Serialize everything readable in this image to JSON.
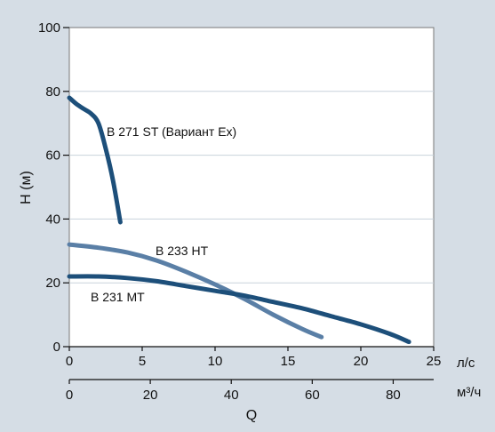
{
  "chart_data": {
    "type": "line",
    "ylabel": "H (м)",
    "xlabel": "Q",
    "x_primary_unit": "л/с",
    "x_secondary_unit": "м³/ч",
    "xlim": [
      0,
      25
    ],
    "ylim": [
      0,
      100
    ],
    "x_ticks": [
      0,
      5,
      10,
      15,
      20,
      25
    ],
    "y_ticks": [
      0,
      20,
      40,
      60,
      80,
      100
    ],
    "x_secondary_ticks": [
      0,
      20,
      40,
      60,
      80
    ],
    "x_secondary_per_primary": 3.6,
    "grid": "horizontal",
    "colors": {
      "background": "#d5dde5",
      "plot_bg": "#ffffff",
      "dark_series": "#1d4f7a",
      "light_series": "#5a7fa6",
      "grid": "#c8d2dc"
    },
    "series": [
      {
        "name": "B 271 ST (Вариант Ex)",
        "color": "#1d4f7a",
        "x": [
          0,
          0.5,
          1.0,
          1.5,
          2.0,
          2.5,
          3.0,
          3.5
        ],
        "y": [
          78,
          76,
          74.5,
          73,
          70,
          62,
          52,
          39
        ]
      },
      {
        "name": "B 233 HT",
        "color": "#5a7fa6",
        "x": [
          0,
          2,
          4,
          6,
          8,
          10,
          12,
          14,
          16,
          17.3
        ],
        "y": [
          32,
          31,
          29.5,
          27,
          23.5,
          19.5,
          15,
          10,
          5.5,
          3
        ]
      },
      {
        "name": "B 231 MT",
        "color": "#1d4f7a",
        "x": [
          0,
          2,
          4,
          6,
          8,
          10,
          12,
          14,
          16,
          18,
          20,
          22,
          23.3
        ],
        "y": [
          22,
          22,
          21.5,
          20.5,
          19,
          17.5,
          16,
          14,
          12,
          9.5,
          7,
          4,
          1.5
        ]
      }
    ]
  }
}
